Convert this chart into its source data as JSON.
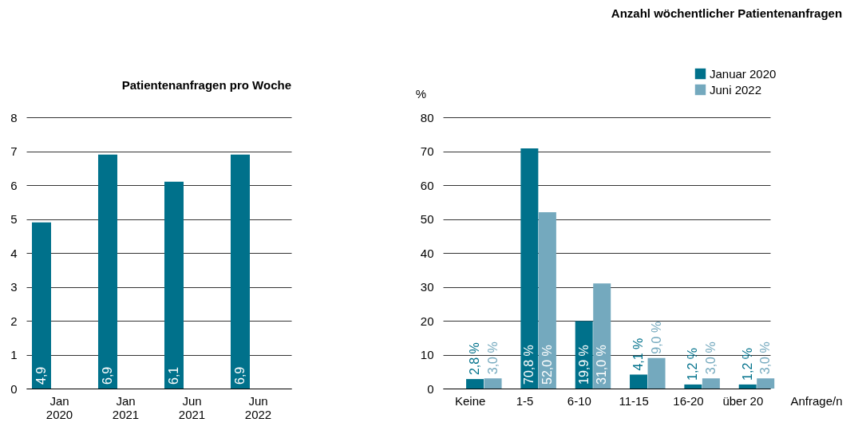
{
  "chart_data": [
    {
      "type": "bar",
      "title": "Patientenanfragen pro Woche",
      "categories": [
        "Jan\n2020",
        "Jan\n2021",
        "Jun\n2021",
        "Jun\n2022"
      ],
      "values": [
        4.9,
        6.9,
        6.1,
        6.9
      ],
      "color": "#00718b",
      "value_labels": [
        "4,9",
        "6,9",
        "6,1",
        "6,9"
      ],
      "ylim": [
        0,
        8
      ],
      "yticks": [
        0,
        1,
        2,
        3,
        4,
        5,
        6,
        7,
        8
      ],
      "grid": "y"
    },
    {
      "type": "bar",
      "title": "Anzahl wöchentlicher Patientenanfragen",
      "xlabel": "Anfrage/n",
      "ylabel": "%",
      "categories": [
        "Keine",
        "1-5",
        "6-10",
        "11-15",
        "16-20",
        "über 20"
      ],
      "series": [
        {
          "name": "Januar 2020",
          "color": "#00718b",
          "values": [
            2.8,
            70.8,
            19.9,
            4.1,
            1.2,
            1.2
          ],
          "value_labels": [
            "2,8 %",
            "70,8 %",
            "19,9 %",
            "4,1 %",
            "1,2 %",
            "1,2 %"
          ]
        },
        {
          "name": "Juni 2022",
          "color": "#74a9be",
          "values": [
            3.0,
            52.0,
            31.0,
            9.0,
            3.0,
            3.0
          ],
          "value_labels": [
            "3,0 %",
            "52,0 %",
            "31,0 %",
            "9,0 %",
            "3,0 %",
            "3,0 %"
          ]
        }
      ],
      "ylim": [
        0,
        80
      ],
      "yticks": [
        0,
        10,
        20,
        30,
        40,
        50,
        60,
        70,
        80
      ],
      "grid": "y",
      "legend": "top right"
    }
  ]
}
